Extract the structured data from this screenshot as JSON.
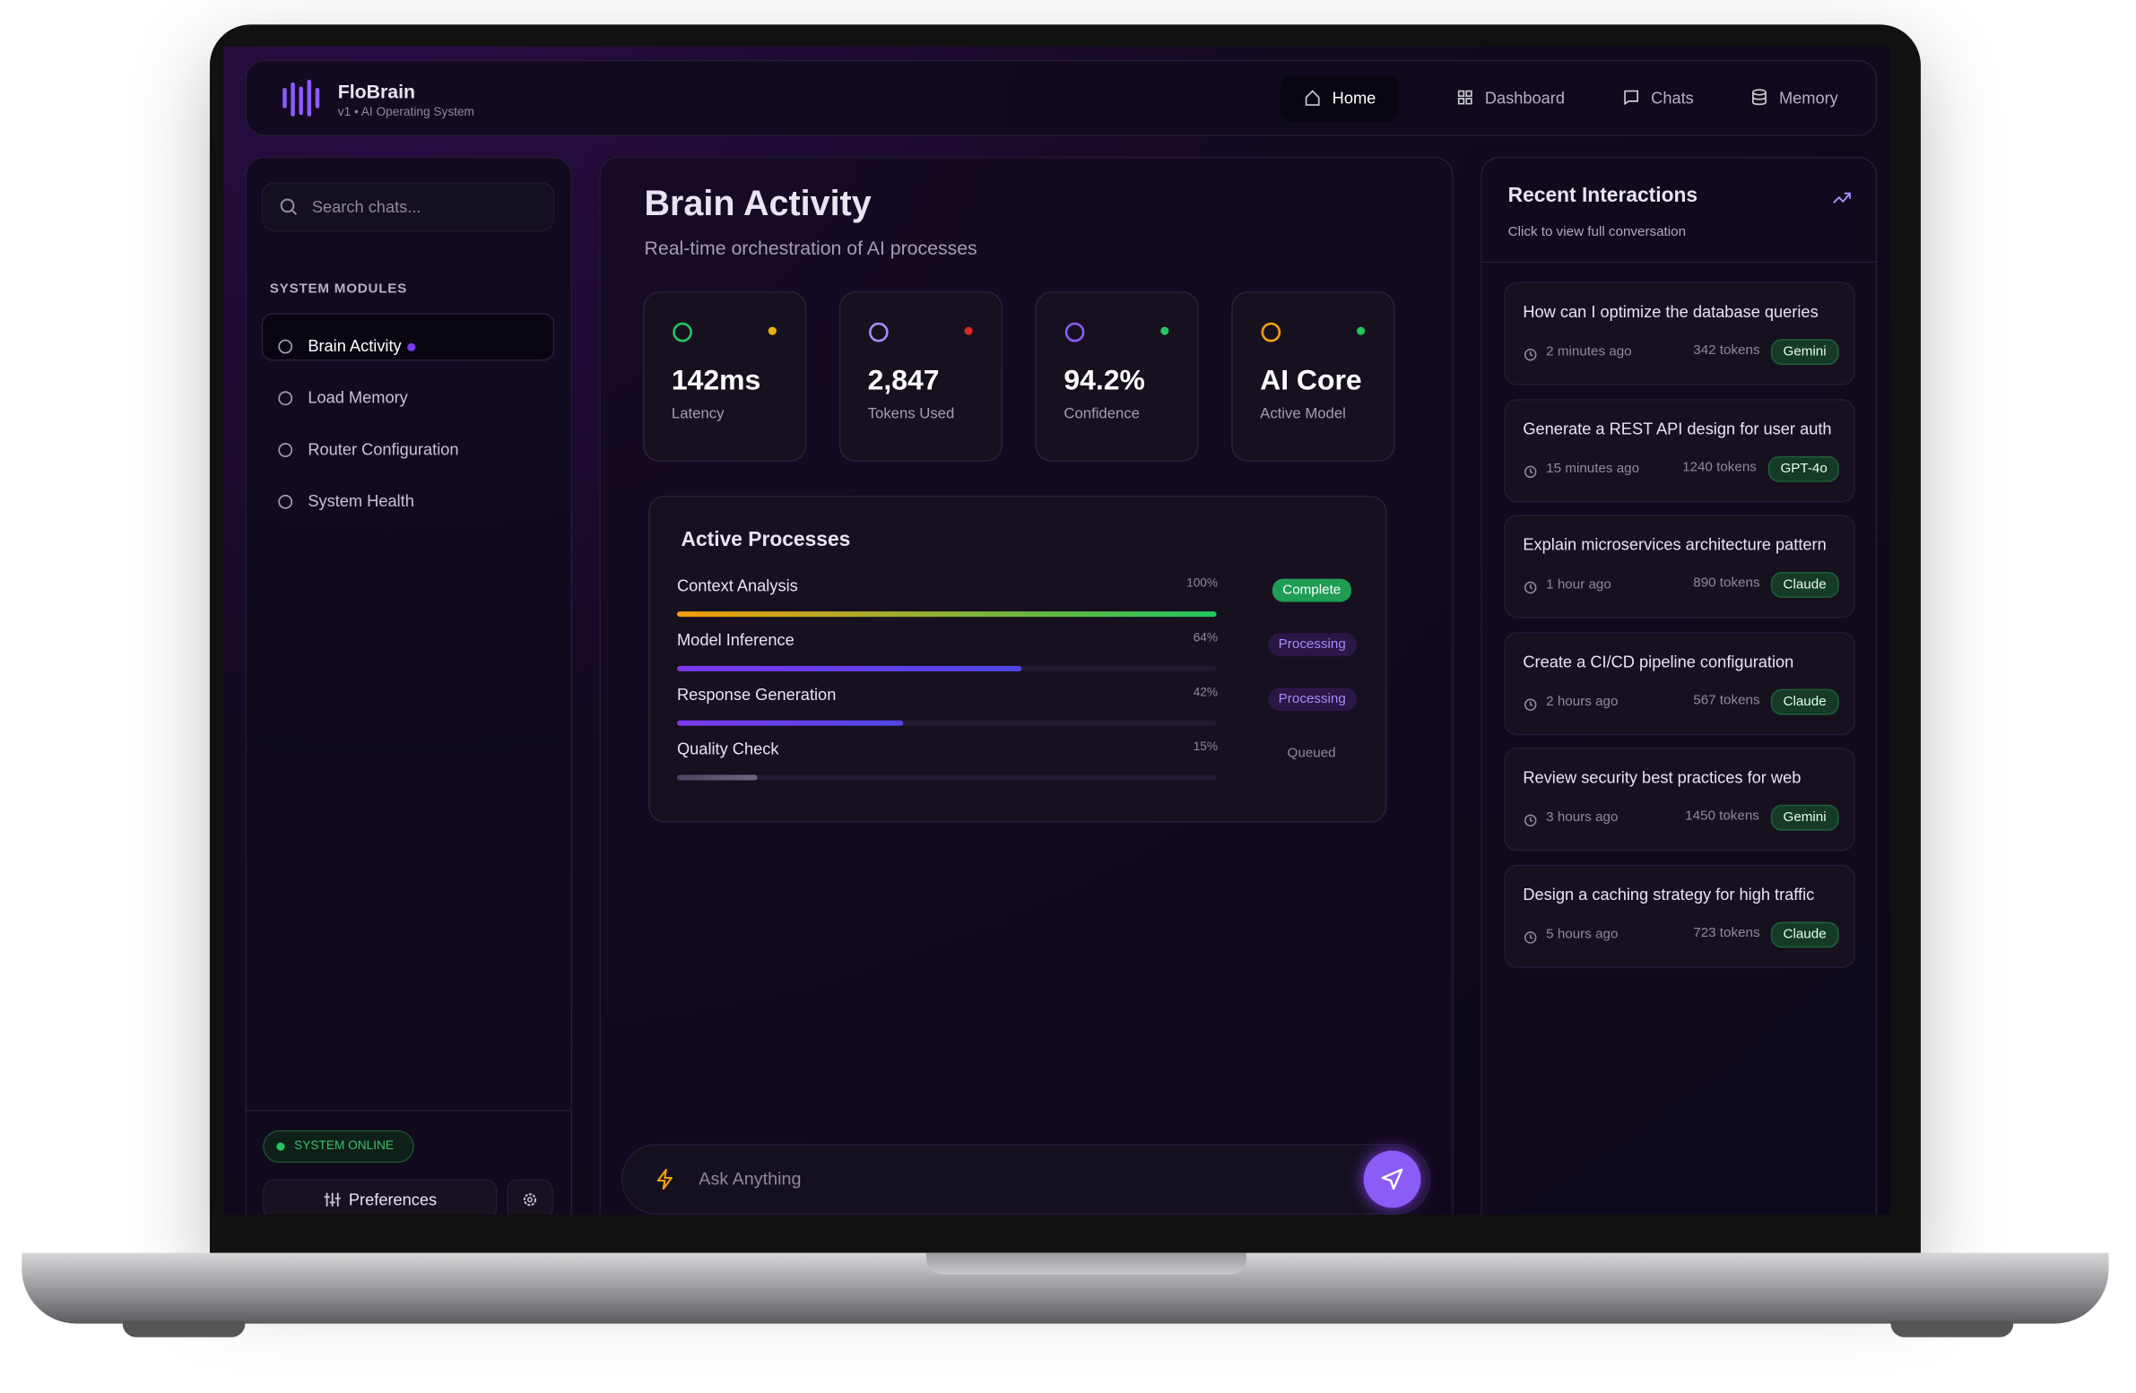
{
  "header": {
    "brand": "FloBrain",
    "subtitle": "v1 • AI Operating System",
    "nav": [
      "Home",
      "Dashboard",
      "Chats",
      "Memory"
    ],
    "active_nav": 0
  },
  "sidebar": {
    "search_placeholder": "Search chats...",
    "section_title": "SYSTEM MODULES",
    "modules": [
      "Brain Activity",
      "Load Memory",
      "Router Configuration",
      "System Health"
    ],
    "active_module": 0,
    "status": "SYSTEM ONLINE",
    "preferences": "Preferences"
  },
  "main": {
    "title": "Brain Activity",
    "subtitle": "Real-time orchestration of AI processes",
    "stats": [
      {
        "value": "142ms",
        "label": "Latency",
        "icon_color": "#22c55e",
        "dot_color": "#eab308"
      },
      {
        "value": "2,847",
        "label": "Tokens Used",
        "icon_color": "#a78bfa",
        "dot_color": "#dc2626"
      },
      {
        "value": "94.2%",
        "label": "Confidence",
        "icon_color": "#8b5cf6",
        "dot_color": "#22c55e"
      },
      {
        "value": "AI Core",
        "label": "Active Model",
        "icon_color": "#f59e0b",
        "dot_color": "#22c55e"
      }
    ],
    "processes_title": "Active Processes",
    "processes": [
      {
        "name": "Context Analysis",
        "progress": 100,
        "progress_label": "100%",
        "status": "Complete"
      },
      {
        "name": "Model Inference",
        "progress": 64,
        "progress_label": "64%",
        "status": "Processing"
      },
      {
        "name": "Response Generation",
        "progress": 42,
        "progress_label": "42%",
        "status": "Processing"
      },
      {
        "name": "Quality Check",
        "progress": 15,
        "progress_label": "15%",
        "status": "Queued"
      }
    ],
    "input_placeholder": "Ask Anything"
  },
  "recent": {
    "title": "Recent Interactions",
    "subtitle": "Click to view full conversation",
    "items": [
      {
        "text": "How can I optimize the database queries",
        "time": "2 minutes ago",
        "tokens": "342 tokens",
        "model": "Gemini"
      },
      {
        "text": "Generate a REST API design for user auth",
        "time": "15 minutes ago",
        "tokens": "1240 tokens",
        "model": "GPT-4o"
      },
      {
        "text": "Explain microservices architecture pattern",
        "time": "1 hour ago",
        "tokens": "890 tokens",
        "model": "Claude"
      },
      {
        "text": "Create a CI/CD pipeline configuration",
        "time": "2 hours ago",
        "tokens": "567 tokens",
        "model": "Claude"
      },
      {
        "text": "Review security best practices for web",
        "time": "3 hours ago",
        "tokens": "1450 tokens",
        "model": "Gemini"
      },
      {
        "text": "Design a caching strategy for high traffic",
        "time": "5 hours ago",
        "tokens": "723 tokens",
        "model": "Claude"
      }
    ]
  }
}
